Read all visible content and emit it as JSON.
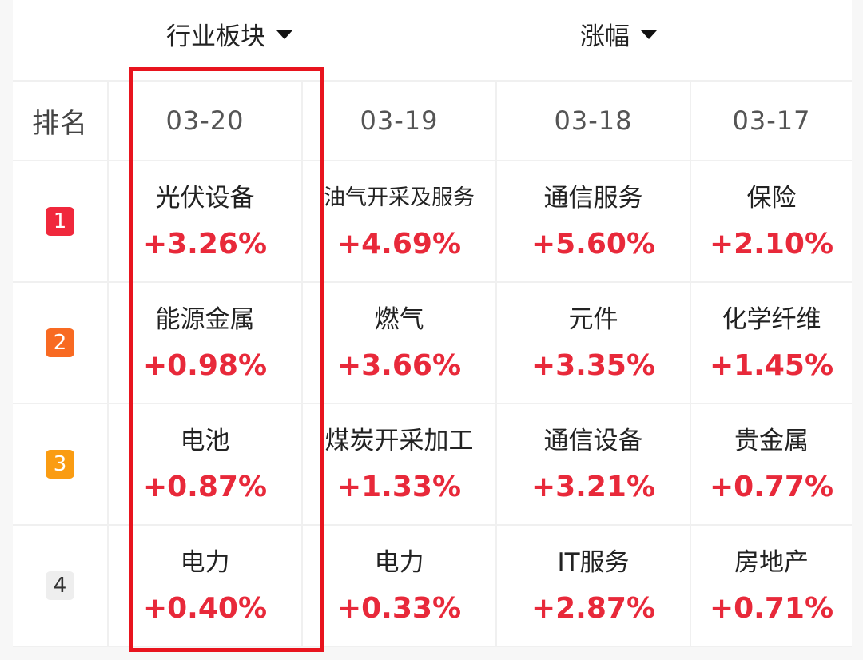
{
  "filters": {
    "industry_label": "行业板块",
    "change_label": "涨幅"
  },
  "table": {
    "rank_header": "排名",
    "dates": [
      "03-20",
      "03-19",
      "03-18",
      "03-17"
    ],
    "rows": [
      {
        "rank": "1",
        "cells": [
          {
            "name": "光伏设备",
            "change": "+3.26%"
          },
          {
            "name": "油气开采及服务",
            "change": "+4.69%"
          },
          {
            "name": "通信服务",
            "change": "+5.60%"
          },
          {
            "name": "保险",
            "change": "+2.10%"
          }
        ]
      },
      {
        "rank": "2",
        "cells": [
          {
            "name": "能源金属",
            "change": "+0.98%"
          },
          {
            "name": "燃气",
            "change": "+3.66%"
          },
          {
            "name": "元件",
            "change": "+3.35%"
          },
          {
            "name": "化学纤维",
            "change": "+1.45%"
          }
        ]
      },
      {
        "rank": "3",
        "cells": [
          {
            "name": "电池",
            "change": "+0.87%"
          },
          {
            "name": "煤炭开采加工",
            "change": "+1.33%"
          },
          {
            "name": "通信设备",
            "change": "+3.21%"
          },
          {
            "name": "贵金属",
            "change": "+0.77%"
          }
        ]
      },
      {
        "rank": "4",
        "cells": [
          {
            "name": "电力",
            "change": "+0.40%"
          },
          {
            "name": "电力",
            "change": "+0.33%"
          },
          {
            "name": "IT服务",
            "change": "+2.87%"
          },
          {
            "name": "房地产",
            "change": "+0.71%"
          }
        ]
      }
    ]
  },
  "colors": {
    "rise": "#e8293a",
    "highlight_frame": "#e8141e",
    "rank_1": "#f0283c",
    "rank_2": "#f86a22",
    "rank_3": "#fa9c12",
    "rank_4": "#eeeeee"
  }
}
